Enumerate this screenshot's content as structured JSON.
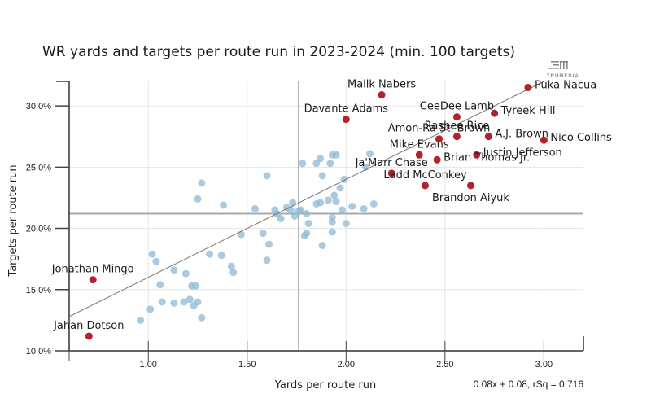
{
  "chart_data": {
    "type": "scatter",
    "title": "WR yards and targets per route run in 2023-2024 (min. 100 targets)",
    "xlabel": "Yards per route run",
    "ylabel": "Targets per route run",
    "xlim": [
      0.6,
      3.2
    ],
    "ylim": [
      10.0,
      32.0
    ],
    "x_ticks": [
      1.0,
      1.5,
      2.0,
      2.5,
      3.0
    ],
    "x_tick_labels": [
      "1.00",
      "1.50",
      "2.00",
      "2.50",
      "3.00"
    ],
    "y_ticks": [
      10,
      15,
      20,
      25,
      30
    ],
    "y_tick_labels": [
      "10.0%",
      "15.0%",
      "20.0%",
      "25.0%",
      "30.0%"
    ],
    "grid": true,
    "mean_lines": {
      "x": 1.76,
      "y": 21.2
    },
    "regression": {
      "slope": 0.08,
      "intercept": 0.08,
      "label": "0.08x + 0.08, rSq = 0.716"
    },
    "watermark": "TRUMEDIA",
    "colors": {
      "highlight": "#b5232a",
      "other": "#8fb8d6",
      "regression": "#777777",
      "mean": "#aaaaaa"
    },
    "highlighted": [
      {
        "name": "Puka Nacua",
        "x": 2.92,
        "y": 31.5,
        "label_pos": "right"
      },
      {
        "name": "Malik Nabers",
        "x": 2.18,
        "y": 30.9,
        "label_pos": "top"
      },
      {
        "name": "Tyreek Hill",
        "x": 2.75,
        "y": 29.4,
        "label_pos": "right"
      },
      {
        "name": "CeeDee Lamb",
        "x": 2.56,
        "y": 29.1,
        "label_pos": "top"
      },
      {
        "name": "Davante Adams",
        "x": 2.0,
        "y": 28.9,
        "label_pos": "top"
      },
      {
        "name": "Rashee Rice",
        "x": 2.56,
        "y": 27.5,
        "label_pos": "top"
      },
      {
        "name": "A.J. Brown",
        "x": 2.72,
        "y": 27.5,
        "label_pos": "right"
      },
      {
        "name": "Nico Collins",
        "x": 3.0,
        "y": 27.2,
        "label_pos": "right"
      },
      {
        "name": "Amon-Ra St. Brown",
        "x": 2.47,
        "y": 27.3,
        "label_pos": "top"
      },
      {
        "name": "Justin Jefferson",
        "x": 2.66,
        "y": 26.0,
        "label_pos": "right"
      },
      {
        "name": "Mike Evans",
        "x": 2.37,
        "y": 26.0,
        "label_pos": "top"
      },
      {
        "name": "Brian Thomas Jr.",
        "x": 2.46,
        "y": 25.6,
        "label_pos": "right"
      },
      {
        "name": "Ja'Marr Chase",
        "x": 2.23,
        "y": 24.5,
        "label_pos": "top"
      },
      {
        "name": "Ladd McConkey",
        "x": 2.4,
        "y": 23.5,
        "label_pos": "top"
      },
      {
        "name": "Brandon Aiyuk",
        "x": 2.63,
        "y": 23.5,
        "label_pos": "bottom"
      },
      {
        "name": "Jonathan Mingo",
        "x": 0.72,
        "y": 15.8,
        "label_pos": "top"
      },
      {
        "name": "Jahan Dotson",
        "x": 0.7,
        "y": 11.2,
        "label_pos": "top"
      }
    ],
    "others": [
      [
        1.27,
        23.7
      ],
      [
        1.38,
        21.9
      ],
      [
        1.25,
        22.4
      ],
      [
        1.6,
        24.3
      ],
      [
        1.47,
        19.5
      ],
      [
        1.54,
        21.6
      ],
      [
        1.58,
        19.6
      ],
      [
        1.67,
        20.8
      ],
      [
        1.7,
        21.7
      ],
      [
        1.72,
        21.5
      ],
      [
        1.74,
        21.0
      ],
      [
        1.76,
        21.4
      ],
      [
        1.77,
        21.5
      ],
      [
        1.64,
        21.5
      ],
      [
        1.65,
        21.2
      ],
      [
        1.73,
        22.1
      ],
      [
        1.8,
        21.2
      ],
      [
        1.61,
        18.7
      ],
      [
        1.6,
        17.4
      ],
      [
        1.79,
        19.4
      ],
      [
        1.8,
        19.6
      ],
      [
        1.81,
        20.4
      ],
      [
        1.93,
        20.5
      ],
      [
        1.93,
        20.9
      ],
      [
        1.88,
        18.6
      ],
      [
        1.93,
        19.7
      ],
      [
        2.0,
        20.4
      ],
      [
        2.03,
        21.8
      ],
      [
        2.09,
        21.6
      ],
      [
        2.14,
        22.0
      ],
      [
        1.78,
        25.3
      ],
      [
        1.85,
        25.3
      ],
      [
        1.87,
        25.7
      ],
      [
        1.93,
        26.0
      ],
      [
        1.95,
        26.0
      ],
      [
        1.92,
        25.3
      ],
      [
        1.88,
        24.3
      ],
      [
        1.99,
        24.0
      ],
      [
        1.97,
        23.3
      ],
      [
        1.94,
        22.7
      ],
      [
        1.91,
        22.3
      ],
      [
        1.87,
        22.1
      ],
      [
        1.85,
        22.0
      ],
      [
        1.95,
        22.2
      ],
      [
        2.12,
        26.1
      ],
      [
        2.1,
        25.0
      ],
      [
        1.98,
        21.5
      ],
      [
        1.02,
        17.9
      ],
      [
        1.04,
        17.3
      ],
      [
        1.06,
        15.4
      ],
      [
        1.13,
        16.6
      ],
      [
        1.19,
        16.3
      ],
      [
        1.22,
        15.3
      ],
      [
        1.24,
        15.3
      ],
      [
        1.31,
        17.9
      ],
      [
        1.37,
        17.8
      ],
      [
        1.42,
        16.9
      ],
      [
        1.43,
        16.4
      ],
      [
        1.07,
        14.0
      ],
      [
        1.13,
        13.9
      ],
      [
        1.18,
        14.0
      ],
      [
        1.21,
        14.2
      ],
      [
        1.25,
        14.0
      ],
      [
        1.23,
        13.7
      ],
      [
        1.27,
        12.7
      ],
      [
        1.01,
        13.4
      ],
      [
        0.96,
        12.5
      ]
    ]
  }
}
